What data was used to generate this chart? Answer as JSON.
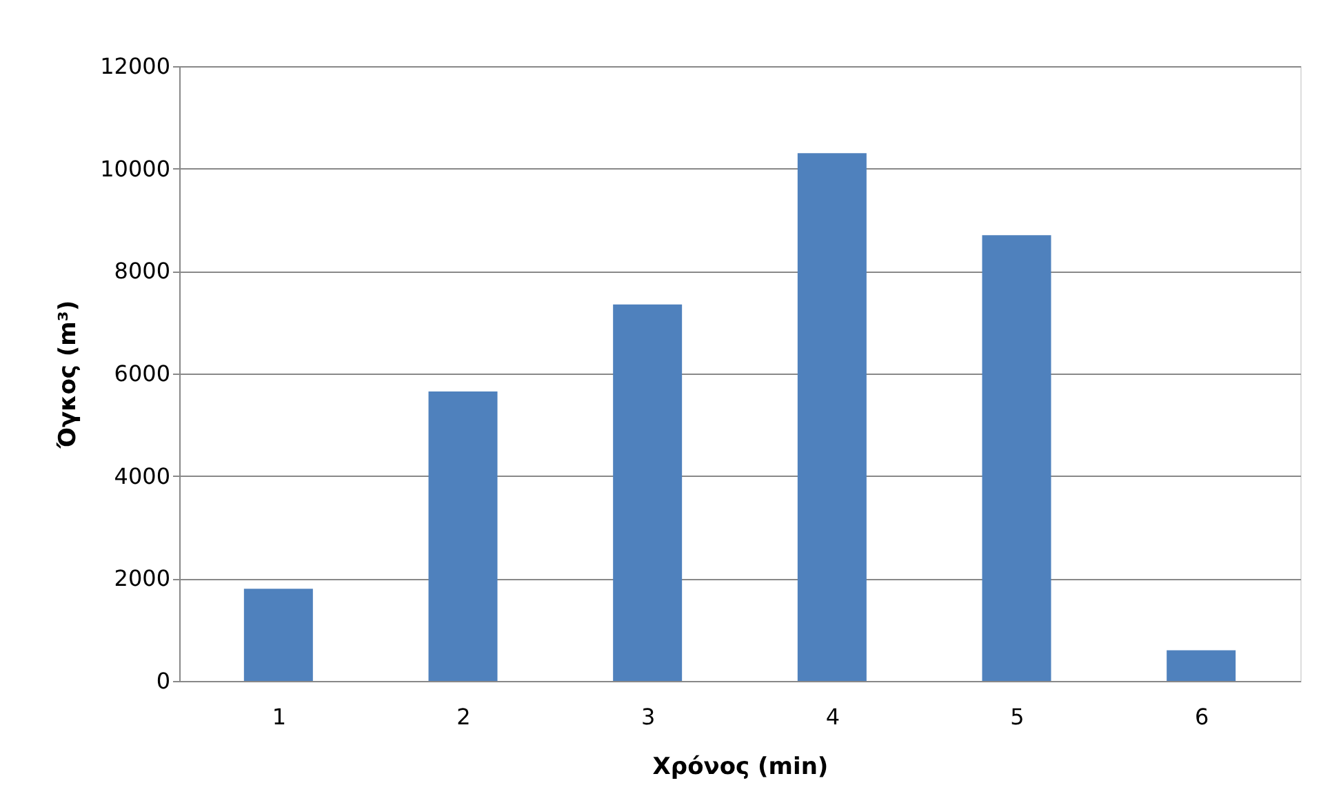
{
  "chart_data": {
    "type": "bar",
    "xlabel": "Χρόνος (min)",
    "ylabel": "Όγκος (m³)",
    "categories": [
      "1",
      "2",
      "3",
      "4",
      "5",
      "6"
    ],
    "values": [
      1800,
      5650,
      7350,
      10300,
      8700,
      600
    ],
    "color": "#4f81bd",
    "ylim": [
      0,
      12000
    ],
    "yticks": [
      0,
      2000,
      4000,
      6000,
      8000,
      10000,
      12000
    ],
    "grid": "y"
  }
}
